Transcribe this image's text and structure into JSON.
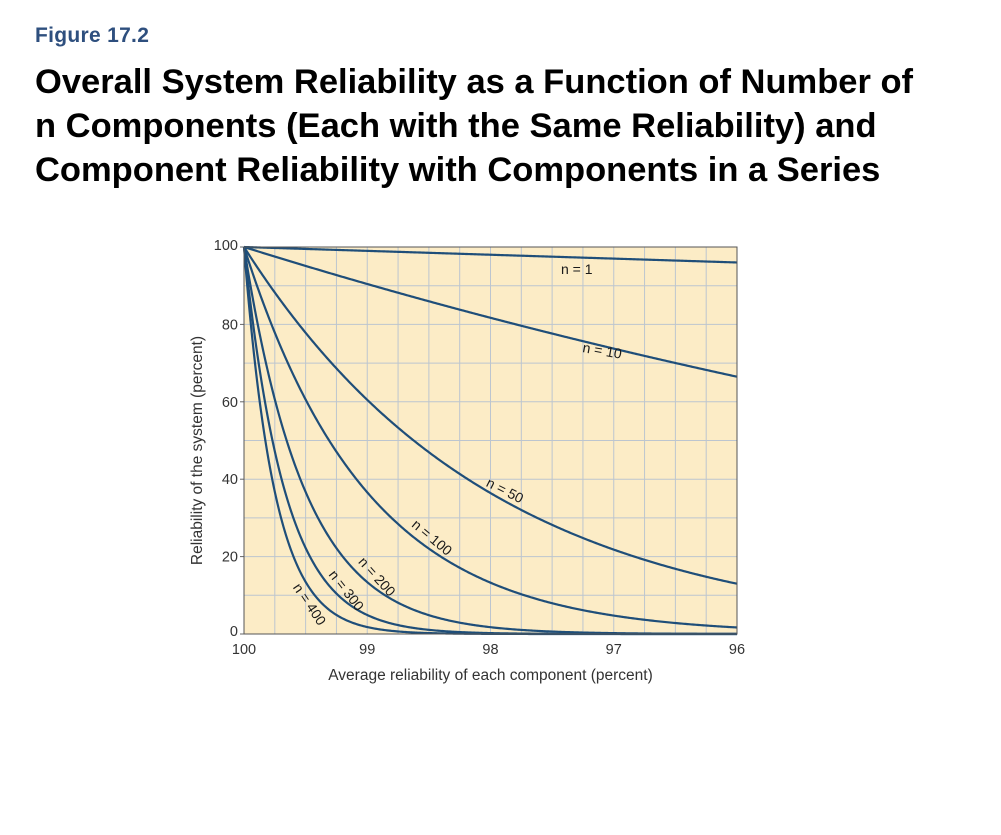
{
  "figure": {
    "label": "Figure 17.2",
    "title": "Overall System Reliability as a Function of Number of n Components (Each with the Same Reliability) and Component Reliability with Components in a Series"
  },
  "chart_data": {
    "type": "line",
    "xlabel": "Average reliability of each component (percent)",
    "ylabel": "Reliability of the system (percent)",
    "xlim": [
      100,
      96
    ],
    "ylim": [
      0,
      100
    ],
    "x_ticks": [
      "100",
      "99",
      "98",
      "97",
      "96"
    ],
    "y_ticks": [
      "0",
      "20",
      "40",
      "60",
      "80",
      "100"
    ],
    "colors": {
      "background": "#fcecc6",
      "grid": "#bcc5cf",
      "line": "#1f4e79"
    },
    "series": [
      {
        "name": "n = 1",
        "n": 1,
        "label": "n = 1",
        "label_x": 97.3,
        "label_y": 93,
        "label_angle": 0
      },
      {
        "name": "n = 10",
        "n": 10,
        "label": "n = 10",
        "label_x": 97.1,
        "label_y": 72,
        "label_angle": 10
      },
      {
        "name": "n = 50",
        "n": 50,
        "label": "n = 50",
        "label_x": 97.9,
        "label_y": 36,
        "label_angle": 27
      },
      {
        "name": "n = 100",
        "n": 100,
        "label": "n = 100",
        "label_x": 98.5,
        "label_y": 24,
        "label_angle": 40
      },
      {
        "name": "n = 200",
        "n": 200,
        "label": "n = 200",
        "label_x": 98.95,
        "label_y": 14,
        "label_angle": 48
      },
      {
        "name": "n = 300",
        "n": 300,
        "label": "n = 300",
        "label_x": 99.2,
        "label_y": 10.5,
        "label_angle": 52
      },
      {
        "name": "n = 400",
        "n": 400,
        "label": "n = 400",
        "label_x": 99.5,
        "label_y": 7,
        "label_angle": 56
      }
    ]
  }
}
